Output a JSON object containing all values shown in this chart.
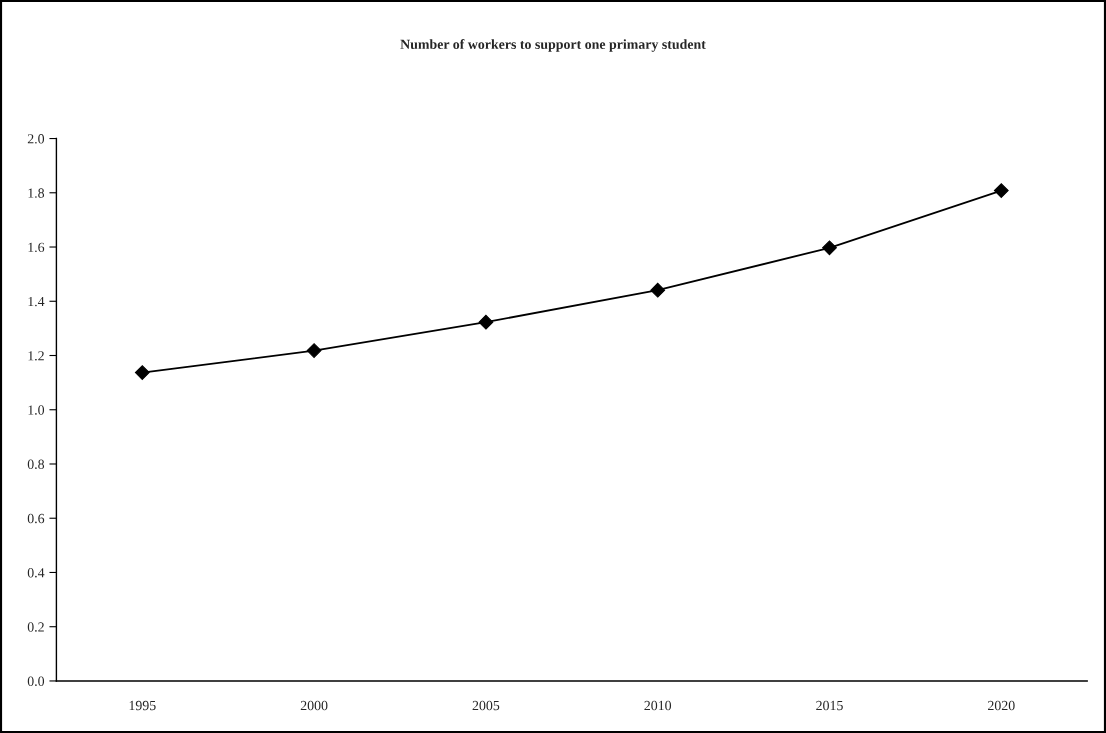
{
  "chart_data": {
    "type": "line",
    "title": "Number of workers to support one primary student",
    "categories": [
      "1995",
      "2000",
      "2005",
      "2010",
      "2015",
      "2020"
    ],
    "series": [
      {
        "color": "#000000",
        "values": [
          1.137,
          1.218,
          1.323,
          1.441,
          1.597,
          1.808
        ]
      }
    ],
    "ylim": [
      0,
      2
    ],
    "yticks": [
      {
        "value": 0,
        "label": "0.0"
      },
      {
        "value": 0.2,
        "label": "0.2"
      },
      {
        "value": 0.4,
        "label": "0.4"
      },
      {
        "value": 0.6,
        "label": "0.6"
      },
      {
        "value": 0.8,
        "label": "0.8"
      },
      {
        "value": 1,
        "label": "1.0"
      },
      {
        "value": 1.2,
        "label": "1.2"
      },
      {
        "value": 1.4,
        "label": "1.4"
      },
      {
        "value": 1.6,
        "label": "1.6"
      },
      {
        "value": 1.8,
        "label": "1.8"
      },
      {
        "value": 2,
        "label": "2.0"
      }
    ],
    "grid": false,
    "marker": "diamond",
    "line_style": "solid"
  }
}
